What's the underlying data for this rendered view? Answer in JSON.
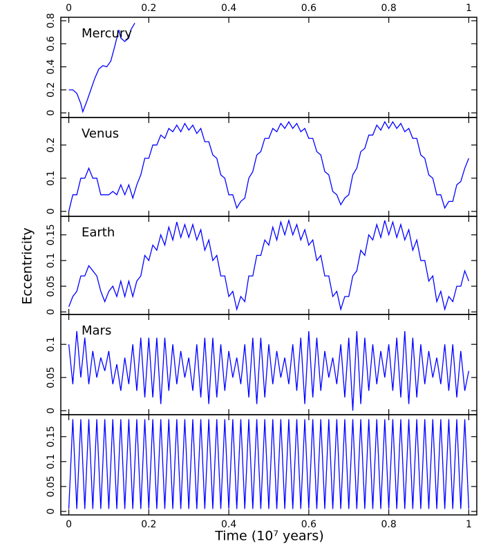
{
  "chart_data": [
    {
      "type": "line",
      "title": "Mercury",
      "color": "#0000ff",
      "xlim": [
        -0.02,
        1.02
      ],
      "xticks": [
        0,
        0.2,
        0.4,
        0.6,
        0.8,
        1
      ],
      "ylim": [
        -0.04,
        0.83
      ],
      "yticks": [
        0,
        0.2,
        0.4,
        0.6,
        0.8
      ],
      "x": [
        0,
        0.01,
        0.02,
        0.03,
        0.035,
        0.045,
        0.055,
        0.065,
        0.075,
        0.085,
        0.095,
        0.105,
        0.115,
        0.125,
        0.13,
        0.14,
        0.15,
        0.155,
        0.16,
        0.165
      ],
      "values": [
        0.2,
        0.2,
        0.17,
        0.08,
        0.01,
        0.1,
        0.2,
        0.3,
        0.38,
        0.41,
        0.4,
        0.45,
        0.58,
        0.72,
        0.65,
        0.62,
        0.65,
        0.72,
        0.75,
        0.78
      ]
    },
    {
      "type": "line",
      "title": "Venus",
      "color": "#0000ff",
      "xlim": [
        -0.02,
        1.02
      ],
      "xticks": [
        0,
        0.2,
        0.4,
        0.6,
        0.8,
        1
      ],
      "ylim": [
        -0.015,
        0.283
      ],
      "yticks": [
        0,
        0.1,
        0.2
      ],
      "x": [
        0,
        0.01,
        0.02,
        0.03,
        0.04,
        0.05,
        0.06,
        0.07,
        0.08,
        0.09,
        0.1,
        0.11,
        0.12,
        0.13,
        0.14,
        0.15,
        0.16,
        0.17,
        0.18,
        0.19,
        0.2,
        0.21,
        0.22,
        0.23,
        0.24,
        0.25,
        0.26,
        0.27,
        0.28,
        0.29,
        0.3,
        0.31,
        0.32,
        0.33,
        0.34,
        0.35,
        0.36,
        0.37,
        0.38,
        0.39,
        0.4,
        0.41,
        0.42,
        0.43,
        0.44,
        0.45,
        0.46,
        0.47,
        0.48,
        0.49,
        0.5,
        0.51,
        0.52,
        0.53,
        0.54,
        0.55,
        0.56,
        0.57,
        0.58,
        0.59,
        0.6,
        0.61,
        0.62,
        0.63,
        0.64,
        0.65,
        0.66,
        0.67,
        0.68,
        0.69,
        0.7,
        0.71,
        0.72,
        0.73,
        0.74,
        0.75,
        0.76,
        0.77,
        0.78,
        0.79,
        0.8,
        0.81,
        0.82,
        0.83,
        0.84,
        0.85,
        0.86,
        0.87,
        0.88,
        0.89,
        0.9,
        0.91,
        0.92,
        0.93,
        0.94,
        0.95,
        0.96,
        0.97,
        0.98,
        0.99,
        1
      ],
      "values": [
        0,
        0.05,
        0.05,
        0.1,
        0.1,
        0.13,
        0.1,
        0.1,
        0.05,
        0.05,
        0.05,
        0.06,
        0.05,
        0.08,
        0.05,
        0.08,
        0.04,
        0.08,
        0.11,
        0.16,
        0.16,
        0.2,
        0.2,
        0.23,
        0.22,
        0.25,
        0.24,
        0.26,
        0.24,
        0.265,
        0.245,
        0.26,
        0.235,
        0.25,
        0.21,
        0.21,
        0.17,
        0.16,
        0.11,
        0.1,
        0.05,
        0.05,
        0.01,
        0.03,
        0.04,
        0.1,
        0.12,
        0.17,
        0.18,
        0.22,
        0.22,
        0.25,
        0.24,
        0.265,
        0.25,
        0.27,
        0.25,
        0.265,
        0.24,
        0.25,
        0.22,
        0.22,
        0.18,
        0.17,
        0.12,
        0.11,
        0.06,
        0.05,
        0.02,
        0.04,
        0.05,
        0.11,
        0.13,
        0.18,
        0.19,
        0.23,
        0.23,
        0.26,
        0.245,
        0.27,
        0.25,
        0.27,
        0.25,
        0.265,
        0.24,
        0.25,
        0.22,
        0.22,
        0.17,
        0.16,
        0.11,
        0.1,
        0.05,
        0.05,
        0.01,
        0.03,
        0.03,
        0.08,
        0.09,
        0.13,
        0.16
      ]
    },
    {
      "type": "line",
      "title": "Earth",
      "ylabel": "Eccentricity",
      "color": "#0000ff",
      "xlim": [
        -0.02,
        1.02
      ],
      "xticks": [
        0,
        0.2,
        0.4,
        0.6,
        0.8,
        1
      ],
      "ylim": [
        -0.005,
        0.186
      ],
      "yticks": [
        0,
        0.05,
        0.1,
        0.15
      ],
      "x": [
        0,
        0.01,
        0.02,
        0.03,
        0.04,
        0.05,
        0.06,
        0.07,
        0.08,
        0.09,
        0.1,
        0.11,
        0.12,
        0.13,
        0.14,
        0.15,
        0.16,
        0.17,
        0.18,
        0.19,
        0.2,
        0.21,
        0.22,
        0.23,
        0.24,
        0.25,
        0.26,
        0.27,
        0.28,
        0.29,
        0.3,
        0.31,
        0.32,
        0.33,
        0.34,
        0.35,
        0.36,
        0.37,
        0.38,
        0.39,
        0.4,
        0.41,
        0.42,
        0.43,
        0.44,
        0.45,
        0.46,
        0.47,
        0.48,
        0.49,
        0.5,
        0.51,
        0.52,
        0.53,
        0.54,
        0.55,
        0.56,
        0.57,
        0.58,
        0.59,
        0.6,
        0.61,
        0.62,
        0.63,
        0.64,
        0.65,
        0.66,
        0.67,
        0.68,
        0.69,
        0.7,
        0.71,
        0.72,
        0.73,
        0.74,
        0.75,
        0.76,
        0.77,
        0.78,
        0.79,
        0.8,
        0.81,
        0.82,
        0.83,
        0.84,
        0.85,
        0.86,
        0.87,
        0.88,
        0.89,
        0.9,
        0.91,
        0.92,
        0.93,
        0.94,
        0.95,
        0.96,
        0.97,
        0.98,
        0.99,
        1
      ],
      "values": [
        0.01,
        0.03,
        0.04,
        0.07,
        0.07,
        0.09,
        0.08,
        0.07,
        0.04,
        0.02,
        0.04,
        0.05,
        0.03,
        0.06,
        0.03,
        0.06,
        0.03,
        0.06,
        0.07,
        0.11,
        0.1,
        0.13,
        0.12,
        0.15,
        0.13,
        0.165,
        0.14,
        0.175,
        0.145,
        0.17,
        0.145,
        0.17,
        0.14,
        0.16,
        0.12,
        0.14,
        0.1,
        0.11,
        0.07,
        0.07,
        0.03,
        0.04,
        0.005,
        0.03,
        0.02,
        0.07,
        0.07,
        0.11,
        0.11,
        0.14,
        0.13,
        0.165,
        0.14,
        0.175,
        0.15,
        0.178,
        0.15,
        0.17,
        0.14,
        0.16,
        0.13,
        0.14,
        0.1,
        0.11,
        0.07,
        0.07,
        0.03,
        0.04,
        0.005,
        0.03,
        0.03,
        0.07,
        0.08,
        0.12,
        0.11,
        0.15,
        0.14,
        0.17,
        0.145,
        0.178,
        0.15,
        0.175,
        0.145,
        0.17,
        0.14,
        0.16,
        0.12,
        0.14,
        0.1,
        0.1,
        0.06,
        0.07,
        0.02,
        0.04,
        0.005,
        0.03,
        0.02,
        0.05,
        0.05,
        0.08,
        0.06
      ]
    },
    {
      "type": "line",
      "title": "Mars",
      "color": "#0000ff",
      "xlim": [
        -0.02,
        1.02
      ],
      "xticks": [
        0,
        0.2,
        0.4,
        0.6,
        0.8,
        1
      ],
      "ylim": [
        -0.006,
        0.145
      ],
      "yticks": [
        0,
        0.05,
        0.1
      ],
      "x": [
        0,
        0.01,
        0.02,
        0.03,
        0.04,
        0.05,
        0.06,
        0.07,
        0.08,
        0.09,
        0.1,
        0.11,
        0.12,
        0.13,
        0.14,
        0.15,
        0.16,
        0.17,
        0.18,
        0.19,
        0.2,
        0.21,
        0.22,
        0.23,
        0.24,
        0.25,
        0.26,
        0.27,
        0.28,
        0.29,
        0.3,
        0.31,
        0.32,
        0.33,
        0.34,
        0.35,
        0.36,
        0.37,
        0.38,
        0.39,
        0.4,
        0.41,
        0.42,
        0.43,
        0.44,
        0.45,
        0.46,
        0.47,
        0.48,
        0.49,
        0.5,
        0.51,
        0.52,
        0.53,
        0.54,
        0.55,
        0.56,
        0.57,
        0.58,
        0.59,
        0.6,
        0.61,
        0.62,
        0.63,
        0.64,
        0.65,
        0.66,
        0.67,
        0.68,
        0.69,
        0.7,
        0.71,
        0.72,
        0.73,
        0.74,
        0.75,
        0.76,
        0.77,
        0.78,
        0.79,
        0.8,
        0.81,
        0.82,
        0.83,
        0.84,
        0.85,
        0.86,
        0.87,
        0.88,
        0.89,
        0.9,
        0.91,
        0.92,
        0.93,
        0.94,
        0.95,
        0.96,
        0.97,
        0.98,
        0.99,
        1
      ],
      "values": [
        0.1,
        0.04,
        0.12,
        0.05,
        0.11,
        0.04,
        0.09,
        0.05,
        0.08,
        0.06,
        0.09,
        0.04,
        0.07,
        0.03,
        0.08,
        0.04,
        0.1,
        0.03,
        0.11,
        0.02,
        0.11,
        0.02,
        0.11,
        0.01,
        0.11,
        0.03,
        0.1,
        0.04,
        0.09,
        0.05,
        0.08,
        0.03,
        0.1,
        0.02,
        0.11,
        0.01,
        0.11,
        0.02,
        0.1,
        0.03,
        0.09,
        0.05,
        0.08,
        0.04,
        0.1,
        0.02,
        0.11,
        0.01,
        0.11,
        0.02,
        0.1,
        0.04,
        0.09,
        0.05,
        0.08,
        0.04,
        0.1,
        0.03,
        0.11,
        0.01,
        0.12,
        0.02,
        0.11,
        0.03,
        0.09,
        0.05,
        0.08,
        0.04,
        0.1,
        0.02,
        0.11,
        0,
        0.12,
        0.01,
        0.11,
        0.03,
        0.1,
        0.04,
        0.09,
        0.05,
        0.1,
        0.03,
        0.11,
        0.02,
        0.12,
        0.01,
        0.11,
        0.02,
        0.1,
        0.04,
        0.09,
        0.05,
        0.08,
        0.04,
        0.1,
        0.03,
        0.1,
        0.02,
        0.09,
        0.03,
        0.06
      ]
    },
    {
      "type": "line",
      "xlabel": "Time (10⁷ years)",
      "color": "#0000ff",
      "xlim": [
        -0.02,
        1.02
      ],
      "xticks": [
        0,
        0.2,
        0.4,
        0.6,
        0.8,
        1
      ],
      "ylim": [
        -0.007,
        0.194
      ],
      "yticks": [
        0,
        0.05,
        0.1,
        0.15
      ],
      "x": [
        0,
        0.01,
        0.02,
        0.03,
        0.04,
        0.05,
        0.06,
        0.07,
        0.08,
        0.09,
        0.1,
        0.11,
        0.12,
        0.13,
        0.14,
        0.15,
        0.16,
        0.17,
        0.18,
        0.19,
        0.2,
        0.21,
        0.22,
        0.23,
        0.24,
        0.25,
        0.26,
        0.27,
        0.28,
        0.29,
        0.3,
        0.31,
        0.32,
        0.33,
        0.34,
        0.35,
        0.36,
        0.37,
        0.38,
        0.39,
        0.4,
        0.41,
        0.42,
        0.43,
        0.44,
        0.45,
        0.46,
        0.47,
        0.48,
        0.49,
        0.5,
        0.51,
        0.52,
        0.53,
        0.54,
        0.55,
        0.56,
        0.57,
        0.58,
        0.59,
        0.6,
        0.61,
        0.62,
        0.63,
        0.64,
        0.65,
        0.66,
        0.67,
        0.68,
        0.69,
        0.7,
        0.71,
        0.72,
        0.73,
        0.74,
        0.75,
        0.76,
        0.77,
        0.78,
        0.79,
        0.8,
        0.81,
        0.82,
        0.83,
        0.84,
        0.85,
        0.86,
        0.87,
        0.88,
        0.89,
        0.9,
        0.91,
        0.92,
        0.93,
        0.94,
        0.95,
        0.96,
        0.97,
        0.98,
        0.99,
        1
      ],
      "values": [
        0.005,
        0.185,
        0.005,
        0.185,
        0.005,
        0.185,
        0.005,
        0.185,
        0.005,
        0.185,
        0.005,
        0.185,
        0.005,
        0.185,
        0.005,
        0.185,
        0.005,
        0.185,
        0.005,
        0.185,
        0.005,
        0.185,
        0.005,
        0.185,
        0.005,
        0.185,
        0.005,
        0.185,
        0.005,
        0.185,
        0.005,
        0.185,
        0.005,
        0.185,
        0.005,
        0.185,
        0.005,
        0.185,
        0.005,
        0.185,
        0.005,
        0.185,
        0.005,
        0.185,
        0.005,
        0.185,
        0.005,
        0.185,
        0.005,
        0.185,
        0.005,
        0.185,
        0.005,
        0.185,
        0.005,
        0.185,
        0.005,
        0.185,
        0.005,
        0.185,
        0.005,
        0.185,
        0.005,
        0.185,
        0.005,
        0.185,
        0.005,
        0.185,
        0.005,
        0.185,
        0.005,
        0.185,
        0.005,
        0.185,
        0.005,
        0.185,
        0.005,
        0.185,
        0.005,
        0.185,
        0.005,
        0.185,
        0.005,
        0.185,
        0.005,
        0.185,
        0.005,
        0.185,
        0.005,
        0.185,
        0.005,
        0.185,
        0.005,
        0.185,
        0.005,
        0.185,
        0.005,
        0.185,
        0.005,
        0.185,
        0.005
      ]
    }
  ]
}
